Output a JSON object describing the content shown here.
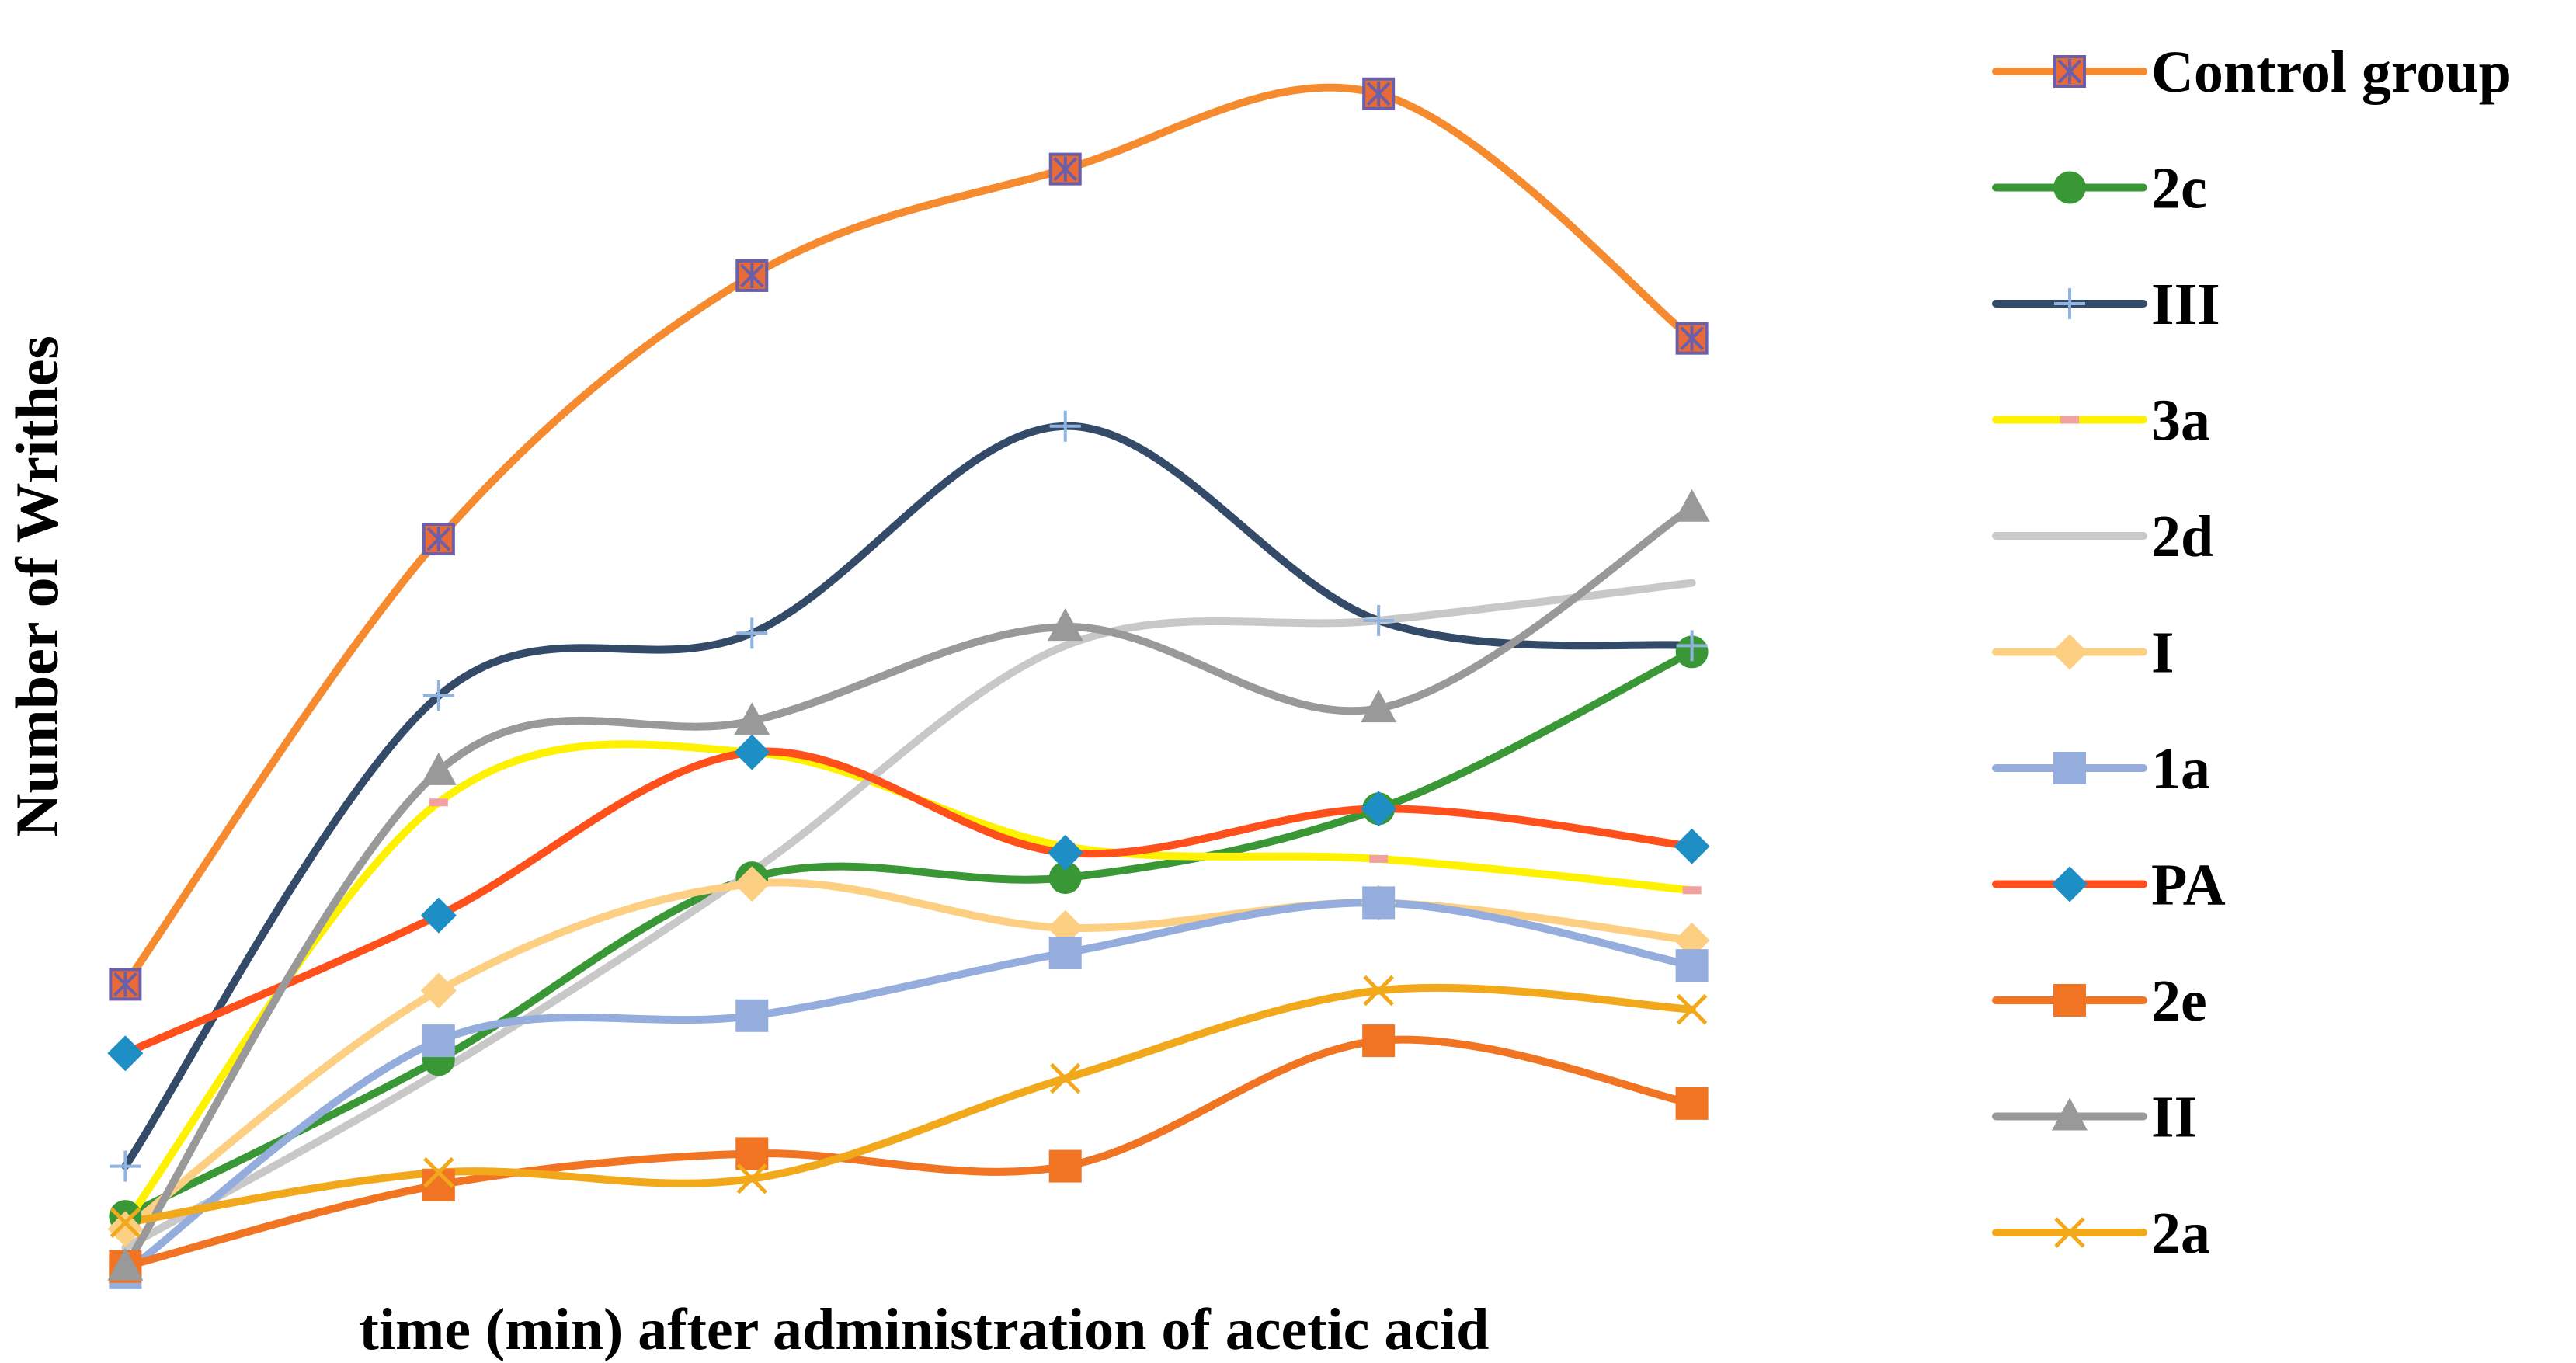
{
  "chart_data": {
    "type": "line",
    "title": "",
    "xlabel": "time (min) after administration of acetic acid",
    "ylabel": "Number of Writhes",
    "x": [
      1,
      2,
      3,
      4,
      5,
      6
    ],
    "xlim": [
      0.6,
      6.4
    ],
    "ylim": [
      0,
      100
    ],
    "grid": false,
    "smooth": true,
    "legend_position": "right",
    "series": [
      {
        "name": "Control group",
        "color": "#F58A2F",
        "marker": "boxed-x",
        "marker_color": "#E86B37",
        "marker_edge": "#6A5FA8",
        "values": [
          24.0,
          59.5,
          80.5,
          89.0,
          95.0,
          75.5
        ]
      },
      {
        "name": "2c",
        "color": "#3A9736",
        "marker": "circle",
        "marker_color": "#3A9736",
        "values": [
          5.5,
          18.0,
          32.5,
          32.5,
          38.0,
          50.5
        ]
      },
      {
        "name": "III",
        "color": "#334A69",
        "marker": "plus",
        "marker_color": "#8FB4E0",
        "values": [
          9.5,
          47.0,
          52.0,
          68.5,
          53.0,
          51.0
        ]
      },
      {
        "name": "3a",
        "color": "#FFF200",
        "marker": "dash",
        "marker_color": "#F2A0A0",
        "values": [
          5.0,
          38.5,
          42.5,
          35.0,
          34.0,
          31.5
        ]
      },
      {
        "name": "2d",
        "color": "#C8C8C8",
        "marker": "none",
        "marker_color": "#C8C8C8",
        "values": [
          3.0,
          17.0,
          33.0,
          51.0,
          53.0,
          56.0
        ]
      },
      {
        "name": "I",
        "color": "#FDCF83",
        "marker": "diamond",
        "marker_color": "#FDCF83",
        "values": [
          4.5,
          23.5,
          32.0,
          28.5,
          30.5,
          27.5
        ]
      },
      {
        "name": "1a",
        "color": "#94ADDC",
        "marker": "square",
        "marker_color": "#94ADDC",
        "values": [
          1.0,
          19.5,
          21.5,
          26.5,
          30.5,
          25.5
        ]
      },
      {
        "name": "PA",
        "color": "#FF4F1A",
        "marker": "diamond",
        "marker_color": "#1E8FC4",
        "values": [
          18.5,
          29.5,
          42.5,
          34.5,
          38.0,
          35.0
        ]
      },
      {
        "name": "2e",
        "color": "#F07421",
        "marker": "square",
        "marker_color": "#F07421",
        "values": [
          1.5,
          8.0,
          10.5,
          9.5,
          19.5,
          14.5
        ]
      },
      {
        "name": "II",
        "color": "#999999",
        "marker": "triangle",
        "marker_color": "#999999",
        "values": [
          1.5,
          41.0,
          45.0,
          52.5,
          46.0,
          62.0
        ]
      },
      {
        "name": "2a",
        "color": "#F2A81B",
        "marker": "x",
        "marker_color": "#F2A81B",
        "values": [
          5.0,
          9.0,
          8.5,
          16.5,
          23.5,
          22.0
        ]
      }
    ]
  }
}
